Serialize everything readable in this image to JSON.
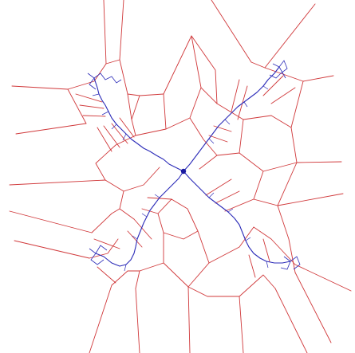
{
  "diagram": {
    "kind": "voronoi-diagram-with-medial-skeleton",
    "colors": {
      "background": "#ffffff",
      "voronoi_edges": "#d0383a",
      "skeleton": "#2b2bb8",
      "center_node": "#1a1aa0"
    },
    "arms": [
      "top-left",
      "top-right",
      "bottom-left",
      "bottom-right"
    ],
    "center_node": "center-node"
  }
}
